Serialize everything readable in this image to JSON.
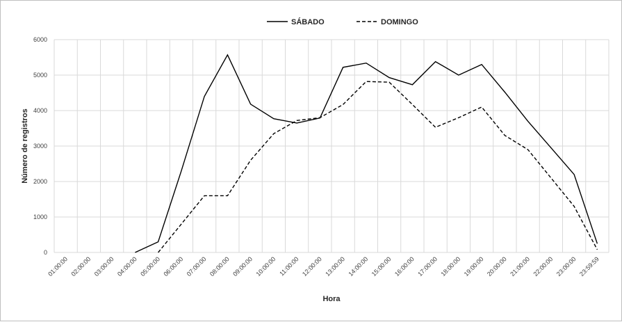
{
  "chart_data": {
    "type": "line",
    "title": "",
    "xlabel": "Hora",
    "ylabel": "Número de registros",
    "ylim": [
      0,
      6000
    ],
    "yticks": [
      "0",
      "1000",
      "2000",
      "3000",
      "4000",
      "5000",
      "6000"
    ],
    "grid": true,
    "legend_position": "top",
    "categories": [
      "01:00:00",
      "02:00:00",
      "03:00:00",
      "04:00:00",
      "05:00:00",
      "06:00:00",
      "07:00:00",
      "08:00:00",
      "09:00:00",
      "10:00:00",
      "11:00:00",
      "12:00:00",
      "13:00:00",
      "14:00:00",
      "15:00:00",
      "16:00:00",
      "17:00:00",
      "18:00:00",
      "19:00:00",
      "20:00:00",
      "21:00:00",
      "22:00:00",
      "23:00:00",
      "23:59:59"
    ],
    "series": [
      {
        "name": "SÁBADO",
        "style": "solid",
        "color": "#000000",
        "values": [
          null,
          null,
          null,
          0,
          300,
          2300,
          4400,
          5570,
          4180,
          3770,
          3650,
          3790,
          5220,
          5340,
          4930,
          4730,
          5380,
          5000,
          5300,
          4520,
          3700,
          2950,
          2200,
          250
        ]
      },
      {
        "name": "DOMINGO",
        "style": "dashed",
        "color": "#000000",
        "values": [
          null,
          null,
          null,
          null,
          0,
          800,
          1600,
          1600,
          2600,
          3350,
          3720,
          3800,
          4170,
          4820,
          4800,
          4170,
          3530,
          3800,
          4100,
          3300,
          2900,
          2100,
          1300,
          80
        ]
      }
    ]
  }
}
